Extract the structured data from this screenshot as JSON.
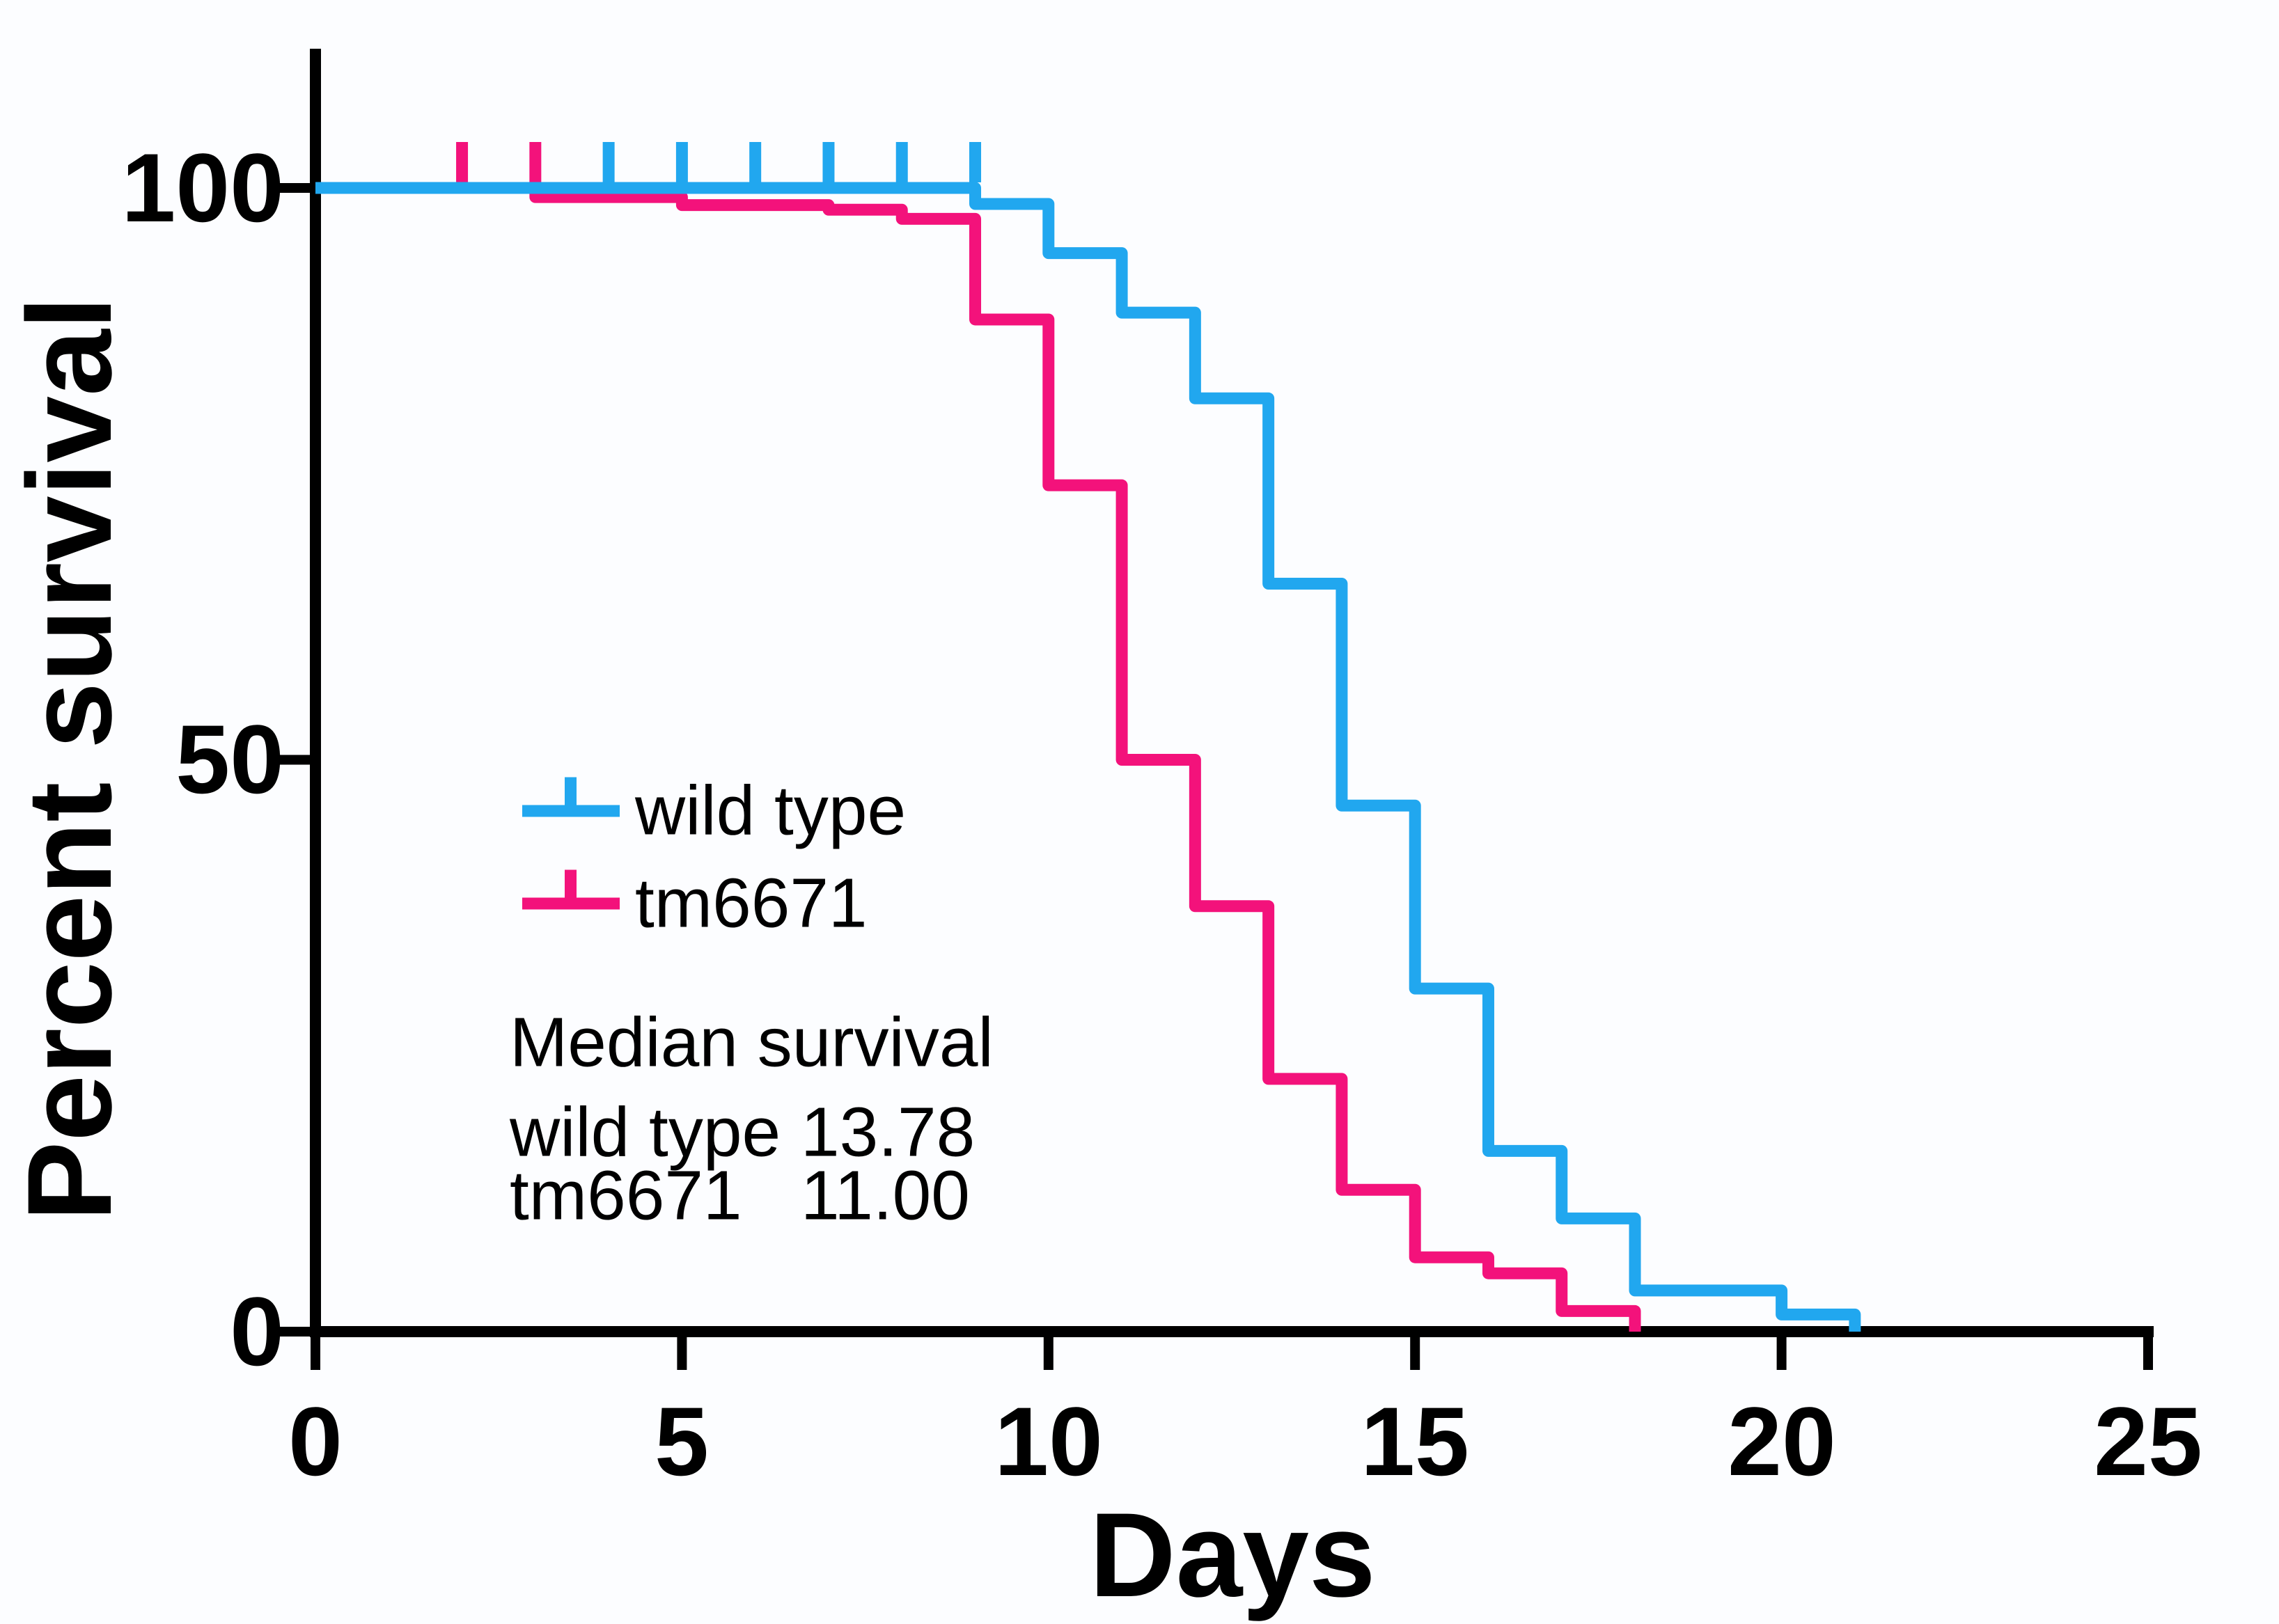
{
  "chart_data": {
    "type": "line",
    "subtype": "kaplan-meier-step-survival",
    "title": "",
    "xlabel": "Days",
    "ylabel": "Percent survival",
    "xlim": [
      0,
      25
    ],
    "ylim": [
      0,
      100
    ],
    "grid": false,
    "legend_position": "inside-left-middle",
    "xticks": {
      "values": [
        0,
        5,
        10,
        15,
        20,
        25
      ],
      "labels": [
        "0",
        "5",
        "10",
        "15",
        "20",
        "25"
      ]
    },
    "yticks": {
      "values": [
        0,
        50,
        100
      ],
      "labels": [
        "0",
        "50",
        "100"
      ]
    },
    "series": [
      {
        "name": "wild type",
        "color": "#21a7ef",
        "start": [
          0,
          100
        ],
        "events": [
          [
            9,
            98.6
          ],
          [
            10,
            94.3
          ],
          [
            11,
            89.1
          ],
          [
            12,
            81.6
          ],
          [
            13,
            65.4
          ],
          [
            14,
            46.0
          ],
          [
            15,
            30.0
          ],
          [
            16,
            15.8
          ],
          [
            17,
            9.9
          ],
          [
            18,
            3.6
          ],
          [
            20,
            1.5
          ],
          [
            21,
            0
          ]
        ],
        "censor_marks": [
          [
            4,
            100
          ],
          [
            5,
            100
          ],
          [
            6,
            100
          ],
          [
            7,
            100
          ],
          [
            8,
            100
          ],
          [
            9,
            100
          ]
        ]
      },
      {
        "name": "tm6671",
        "color": "#f3127b",
        "start": [
          0,
          100
        ],
        "events": [
          [
            3,
            99.2
          ],
          [
            5,
            98.5
          ],
          [
            7,
            98.1
          ],
          [
            8,
            97.3
          ],
          [
            9,
            88.5
          ],
          [
            10,
            74.0
          ],
          [
            11,
            50.0
          ],
          [
            12,
            37.2
          ],
          [
            13,
            22.1
          ],
          [
            14,
            12.4
          ],
          [
            15,
            6.5
          ],
          [
            16,
            5.1
          ],
          [
            17,
            1.8
          ],
          [
            18,
            0
          ]
        ],
        "censor_marks": [
          [
            2,
            100
          ],
          [
            3,
            100
          ]
        ]
      }
    ]
  },
  "legend": {
    "items": [
      {
        "label": "wild type",
        "color": "#21a7ef"
      },
      {
        "label": "tm6671",
        "color": "#f3127b"
      }
    ]
  },
  "median_table": {
    "title": "Median survival",
    "rows": [
      {
        "label": "wild type",
        "value": "13.78"
      },
      {
        "label": "tm6671",
        "value": "11.00"
      }
    ]
  }
}
